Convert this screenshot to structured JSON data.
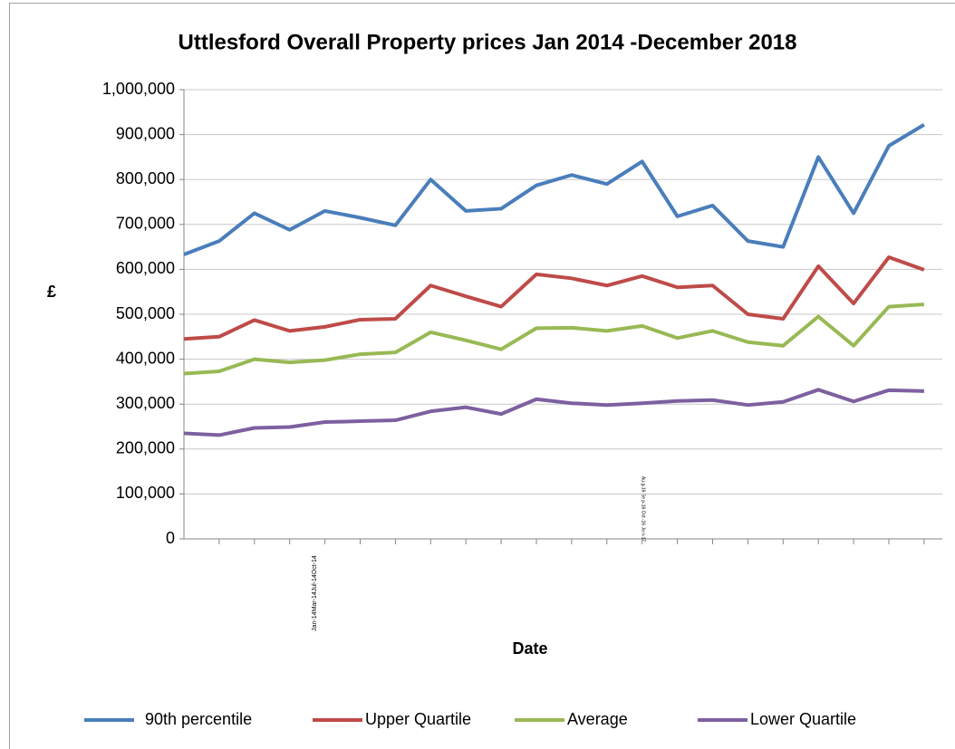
{
  "chart_data": {
    "type": "line",
    "title": "Uttlesford Overall Property prices Jan 2014 -December 2018",
    "x_label": "Date",
    "y_label": "£",
    "categories": [
      null,
      null,
      null,
      null,
      null,
      null,
      null,
      null,
      null,
      null,
      null,
      null,
      null,
      null,
      null,
      null,
      null,
      null,
      null,
      null,
      null,
      null
    ],
    "annotations": [
      "Jan-14Mar-14Jul-14Oct-14",
      "Au g-16 Se p-16 Oct -16 Ja n-17"
    ],
    "series": [
      {
        "name": "90th percentile",
        "color": "#4a7ebb",
        "values": [
          633000,
          663000,
          725000,
          688000,
          730000,
          715000,
          698000,
          800000,
          730000,
          735000,
          787000,
          810000,
          790000,
          840000,
          718000,
          742000,
          663000,
          650000,
          850000,
          725000,
          875000,
          922000
        ]
      },
      {
        "name": "Upper Quartile",
        "color": "#be4b48",
        "values": [
          445000,
          450000,
          487000,
          463000,
          472000,
          488000,
          490000,
          564000,
          540000,
          517000,
          589000,
          580000,
          564000,
          585000,
          560000,
          564000,
          500000,
          490000,
          607000,
          524000,
          627000,
          599000
        ]
      },
      {
        "name": "Average",
        "color": "#98b954",
        "values": [
          368000,
          373000,
          400000,
          393000,
          398000,
          411000,
          415000,
          460000,
          442000,
          422000,
          469000,
          470000,
          463000,
          474000,
          447000,
          463000,
          438000,
          430000,
          495000,
          430000,
          517000,
          522000
        ]
      },
      {
        "name": "Lower Quartile",
        "color": "#7d60a0",
        "values": [
          235000,
          231000,
          247000,
          249000,
          260000,
          262000,
          264000,
          284000,
          293000,
          278000,
          311000,
          302000,
          298000,
          302000,
          307000,
          309000,
          298000,
          305000,
          332000,
          306000,
          331000,
          329000
        ]
      }
    ],
    "ylim": [
      0,
      1000000
    ],
    "yticks": [
      0,
      {
        "value": 100000,
        "label": "100,000"
      },
      {
        "value": 200000,
        "label": "200,000"
      },
      {
        "value": 300000,
        "label": "300,000"
      },
      {
        "value": 400000,
        "label": "400,000"
      },
      {
        "value": 500000,
        "label": "500,000"
      },
      {
        "value": 600000,
        "label": "600,000"
      },
      {
        "value": 700000,
        "label": "700,000"
      },
      {
        "value": 800000,
        "label": "800,000"
      },
      {
        "value": 900000,
        "label": "900,000"
      },
      {
        "value": 1000000,
        "label": "1,000,000"
      }
    ],
    "grid": true,
    "legend": "bottom"
  }
}
